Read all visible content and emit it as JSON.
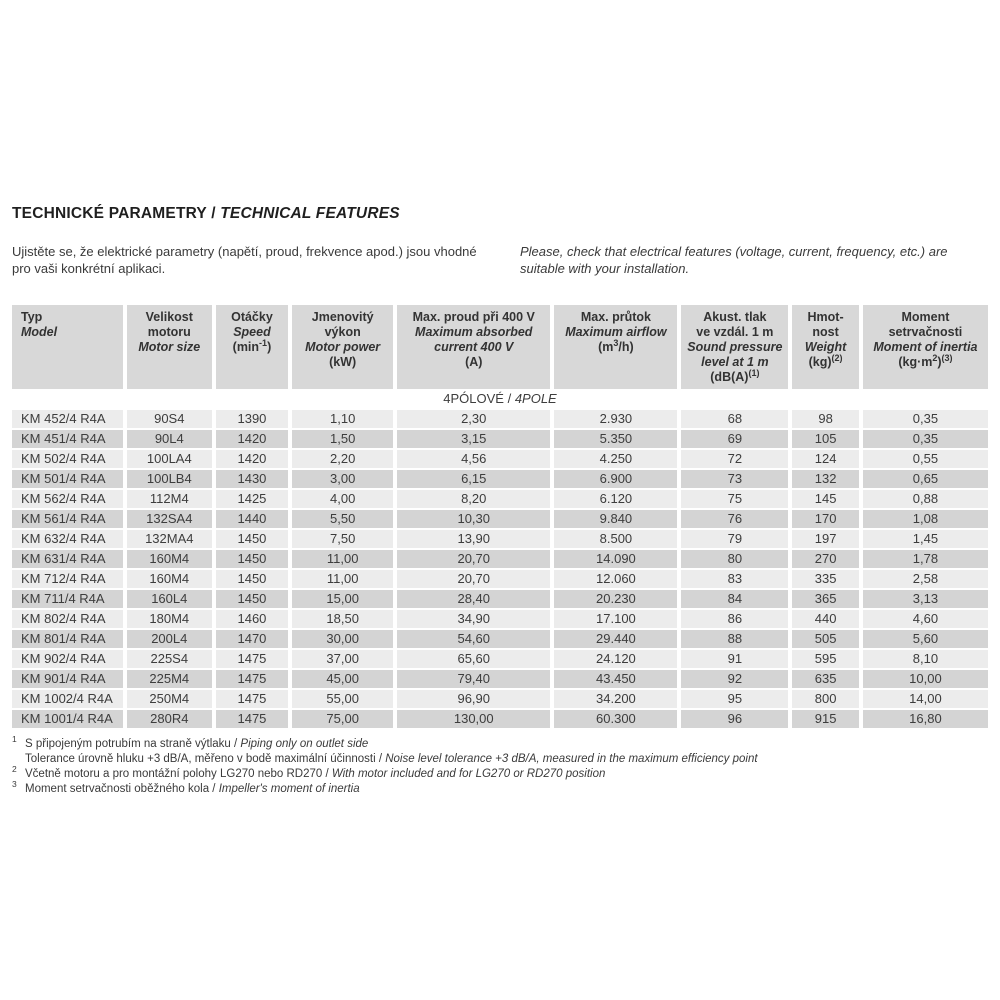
{
  "sep": " / ",
  "colors": {
    "header_bg": "#d8d8d8",
    "row_light": "#ececec",
    "row_dark": "#d4d4d4",
    "text": "#3d3d3d",
    "title_text": "#1f1f1f"
  },
  "title": {
    "cz": "TECHNICKÉ PARAMETRY",
    "en": "TECHNICAL FEATURES"
  },
  "intro": {
    "cz": "Ujistěte se, že elektrické parametry (napětí, proud, frekvence apod.) jsou vhodné pro vaši konkrétní aplikaci.",
    "en": "Please, check that electrical features (voltage, current, frequency, etc.) are suitable with your installation."
  },
  "table": {
    "columns": [
      {
        "cz": [
          "Typ"
        ],
        "en": [
          "Model"
        ],
        "unit": []
      },
      {
        "cz": [
          "Velikost",
          "motoru"
        ],
        "en": [
          "Motor size"
        ],
        "unit": []
      },
      {
        "cz": [
          "Otáčky"
        ],
        "en": [
          "Speed"
        ],
        "unit": [
          {
            "t": "(min"
          },
          {
            "s": "-1"
          },
          {
            "t": ")"
          }
        ]
      },
      {
        "cz": [
          "Jmenovitý",
          "výkon"
        ],
        "en": [
          "Motor power"
        ],
        "unit": [
          {
            "t": "(kW)"
          }
        ]
      },
      {
        "cz": [
          "Max. proud při 400 V"
        ],
        "en": [
          "Maximum absorbed",
          "current 400 V"
        ],
        "unit": [
          {
            "t": "(A)"
          }
        ]
      },
      {
        "cz": [
          "Max. průtok"
        ],
        "en": [
          "Maximum airflow"
        ],
        "unit": [
          {
            "t": "(m"
          },
          {
            "s": "3"
          },
          {
            "t": "/h)"
          }
        ]
      },
      {
        "cz": [
          "Akust. tlak",
          "ve vzdál. 1 m"
        ],
        "en": [
          "Sound pressure",
          "level at 1 m"
        ],
        "unit": [
          {
            "t": "(dB(A)"
          },
          {
            "s": "(1)"
          }
        ]
      },
      {
        "cz": [
          "Hmot-",
          "nost"
        ],
        "en": [
          "Weight"
        ],
        "unit": [
          {
            "t": "(kg)"
          },
          {
            "s": "(2)"
          }
        ]
      },
      {
        "cz": [
          "Moment",
          "setrvačnosti"
        ],
        "en": [
          "Moment of inertia"
        ],
        "unit": [
          {
            "t": "(kg·m"
          },
          {
            "s": "2"
          },
          {
            "t": ")"
          },
          {
            "s": "(3)"
          }
        ]
      }
    ],
    "section": {
      "cz": "4PÓLOVÉ",
      "en": "4POLE"
    },
    "rows": [
      [
        "KM 452/4 R4A",
        "90S4",
        "1390",
        "1,10",
        "2,30",
        "2.930",
        "68",
        "98",
        "0,35"
      ],
      [
        "KM 451/4 R4A",
        "90L4",
        "1420",
        "1,50",
        "3,15",
        "5.350",
        "69",
        "105",
        "0,35"
      ],
      [
        "KM 502/4 R4A",
        "100LA4",
        "1420",
        "2,20",
        "4,56",
        "4.250",
        "72",
        "124",
        "0,55"
      ],
      [
        "KM 501/4 R4A",
        "100LB4",
        "1430",
        "3,00",
        "6,15",
        "6.900",
        "73",
        "132",
        "0,65"
      ],
      [
        "KM 562/4 R4A",
        "112M4",
        "1425",
        "4,00",
        "8,20",
        "6.120",
        "75",
        "145",
        "0,88"
      ],
      [
        "KM 561/4 R4A",
        "132SA4",
        "1440",
        "5,50",
        "10,30",
        "9.840",
        "76",
        "170",
        "1,08"
      ],
      [
        "KM 632/4 R4A",
        "132MA4",
        "1450",
        "7,50",
        "13,90",
        "8.500",
        "79",
        "197",
        "1,45"
      ],
      [
        "KM 631/4 R4A",
        "160M4",
        "1450",
        "11,00",
        "20,70",
        "14.090",
        "80",
        "270",
        "1,78"
      ],
      [
        "KM 712/4 R4A",
        "160M4",
        "1450",
        "11,00",
        "20,70",
        "12.060",
        "83",
        "335",
        "2,58"
      ],
      [
        "KM 711/4 R4A",
        "160L4",
        "1450",
        "15,00",
        "28,40",
        "20.230",
        "84",
        "365",
        "3,13"
      ],
      [
        "KM 802/4 R4A",
        "180M4",
        "1460",
        "18,50",
        "34,90",
        "17.100",
        "86",
        "440",
        "4,60"
      ],
      [
        "KM 801/4 R4A",
        "200L4",
        "1470",
        "30,00",
        "54,60",
        "29.440",
        "88",
        "505",
        "5,60"
      ],
      [
        "KM 902/4 R4A",
        "225S4",
        "1475",
        "37,00",
        "65,60",
        "24.120",
        "91",
        "595",
        "8,10"
      ],
      [
        "KM 901/4 R4A",
        "225M4",
        "1475",
        "45,00",
        "79,40",
        "43.450",
        "92",
        "635",
        "10,00"
      ],
      [
        "KM 1002/4 R4A",
        "250M4",
        "1475",
        "55,00",
        "96,90",
        "34.200",
        "95",
        "800",
        "14,00"
      ],
      [
        "KM 1001/4 R4A",
        "280R4",
        "1475",
        "75,00",
        "130,00",
        "60.300",
        "96",
        "915",
        "16,80"
      ]
    ]
  },
  "footnotes": [
    {
      "marker": "1",
      "cz": "S připojeným potrubím na straně výtlaku",
      "en": "Piping only on outlet side"
    },
    {
      "marker": "",
      "cz": "Tolerance úrovně hluku +3 dB/A, měřeno v bodě maximální účinnosti",
      "en": "Noise level tolerance +3 dB/A, measured in the maximum efficiency point"
    },
    {
      "marker": "2",
      "cz": "Včetně motoru a pro montážní polohy LG270 nebo RD270",
      "en": "With motor included and for LG270 or RD270 position"
    },
    {
      "marker": "3",
      "cz": "Moment setrvačnosti oběžného kola",
      "en": "Impeller's moment of inertia"
    }
  ]
}
